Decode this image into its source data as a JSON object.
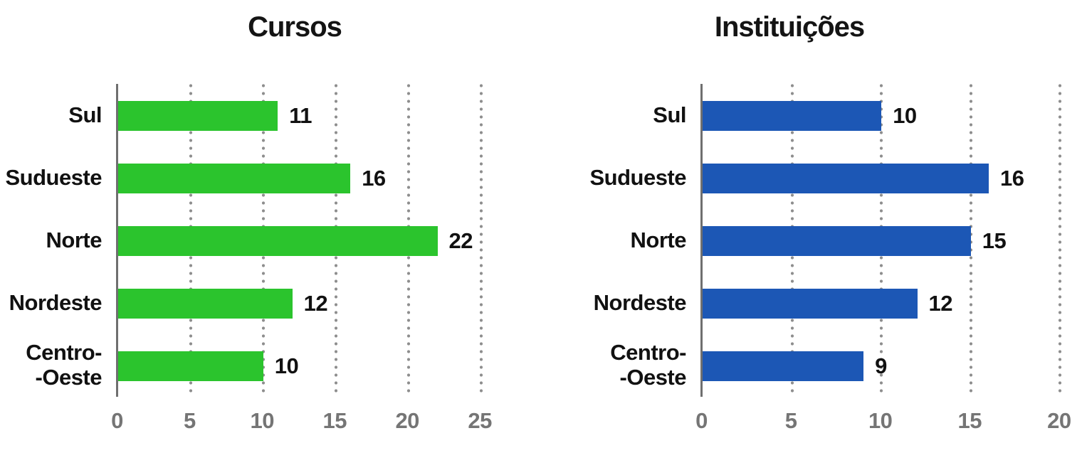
{
  "figure": {
    "background": "#ffffff",
    "axis_color": "#6f6f6f",
    "grid_dot_color": "#8e8e8e",
    "tick_label_color": "#757575",
    "text_color": "#111111"
  },
  "chart_data": [
    {
      "type": "bar",
      "orientation": "horizontal",
      "title": "Cursos",
      "categories": [
        "Sul",
        "Sudueste",
        "Norte",
        "Nordeste",
        "Centro-\n-Oeste"
      ],
      "values": [
        11,
        16,
        22,
        12,
        10
      ],
      "bar_color": "#2bc42d",
      "xticks": [
        0,
        5,
        10,
        15,
        20,
        25
      ],
      "xlim": [
        0,
        26
      ],
      "ylabel": "",
      "xlabel": "",
      "grid": "vertical-dotted",
      "legend": "none",
      "value_labels_shown": true
    },
    {
      "type": "bar",
      "orientation": "horizontal",
      "title": "Instituições",
      "categories": [
        "Sul",
        "Sudueste",
        "Norte",
        "Nordeste",
        "Centro-\n-Oeste"
      ],
      "values": [
        10,
        16,
        15,
        12,
        9
      ],
      "bar_color": "#1c57b5",
      "xticks": [
        0,
        5,
        10,
        15,
        20
      ],
      "xlim": [
        0,
        20.5
      ],
      "ylabel": "",
      "xlabel": "",
      "grid": "vertical-dotted",
      "legend": "none",
      "value_labels_shown": true
    }
  ]
}
